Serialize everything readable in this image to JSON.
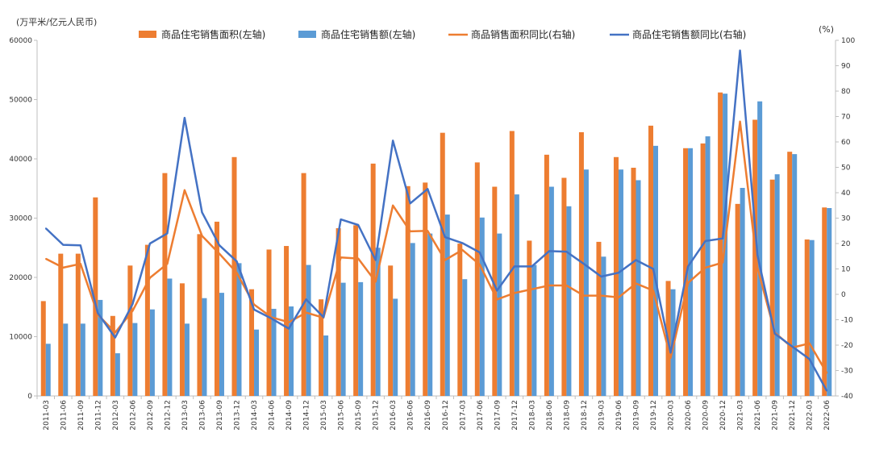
{
  "chart_data": {
    "type": "bar",
    "left_unit": "(万平米/亿元人民币)",
    "right_unit": "(%)",
    "categories": [
      "2011-03",
      "2011-06",
      "2011-09",
      "2011-12",
      "2012-03",
      "2012-06",
      "2012-09",
      "2012-12",
      "2013-03",
      "2013-06",
      "2013-09",
      "2013-12",
      "2014-03",
      "2014-06",
      "2014-09",
      "2014-12",
      "2015-03",
      "2015-06",
      "2015-09",
      "2015-12",
      "2016-03",
      "2016-06",
      "2016-09",
      "2016-12",
      "2017-03",
      "2017-06",
      "2017-09",
      "2017-12",
      "2018-03",
      "2018-06",
      "2018-09",
      "2018-12",
      "2019-03",
      "2019-06",
      "2019-09",
      "2019-12",
      "2020-03",
      "2020-06",
      "2020-09",
      "2020-12",
      "2021-03",
      "2021-06",
      "2021-09",
      "2021-12",
      "2022-03",
      "2022-06"
    ],
    "y_left": {
      "min": 0,
      "max": 60000,
      "ticks": [
        0,
        10000,
        20000,
        30000,
        40000,
        50000,
        60000
      ]
    },
    "y_right": {
      "min": -40,
      "max": 100,
      "ticks": [
        -40,
        -30,
        -20,
        -10,
        0,
        10,
        20,
        30,
        40,
        50,
        60,
        70,
        80,
        90,
        100
      ]
    },
    "legend": [
      {
        "label": "商品住宅销售面积(左轴)",
        "kind": "bar",
        "color": "#ED7D31"
      },
      {
        "label": "商品住宅销售额(左轴)",
        "kind": "bar",
        "color": "#5B9BD5"
      },
      {
        "label": "商品销售面积同比(右轴)",
        "kind": "line",
        "color": "#ED7D31"
      },
      {
        "label": "商品住宅销售额同比(右轴)",
        "kind": "line",
        "color": "#4472C4"
      }
    ],
    "series": [
      {
        "name": "商品住宅销售面积(左轴)",
        "axis": "left",
        "type": "bar",
        "color": "#ED7D31",
        "values": [
          16000,
          24000,
          24000,
          33500,
          13500,
          22000,
          25500,
          37600,
          19000,
          27300,
          29400,
          40300,
          18000,
          24700,
          25300,
          37600,
          16300,
          28300,
          28800,
          39200,
          22000,
          35400,
          36000,
          44400,
          25700,
          39400,
          35300,
          44700,
          26200,
          40700,
          36800,
          44500,
          26000,
          40300,
          38500,
          45600,
          19400,
          41800,
          42600,
          51200,
          32400,
          46600,
          36500,
          41200,
          26400,
          31800
        ]
      },
      {
        "name": "商品住宅销售额(左轴)",
        "axis": "left",
        "type": "bar",
        "color": "#5B9BD5",
        "values": [
          8800,
          12200,
          12200,
          16200,
          7200,
          12300,
          14600,
          19800,
          12200,
          16500,
          17400,
          22400,
          11200,
          14700,
          15100,
          22100,
          10200,
          19100,
          19200,
          25000,
          16400,
          25800,
          27400,
          30600,
          19700,
          30100,
          27400,
          34000,
          22100,
          35300,
          32000,
          38200,
          23500,
          38200,
          36400,
          42200,
          18000,
          41800,
          43800,
          51000,
          35100,
          49700,
          37400,
          40800,
          26300,
          31700
        ]
      },
      {
        "name": "商品销售面积同比(右轴)",
        "axis": "right",
        "type": "line",
        "color": "#ED7D31",
        "values": [
          14,
          10.5,
          12,
          -8,
          -15,
          -6.5,
          6.5,
          12,
          41,
          23,
          16,
          8.5,
          -4,
          -9,
          -11,
          -7.2,
          -9.2,
          14.5,
          14.1,
          5,
          35,
          24.8,
          25,
          13.5,
          17.5,
          11.7,
          -2,
          0.5,
          2,
          3.5,
          3.5,
          -0.5,
          -0.5,
          -1.2,
          4.3,
          1.5,
          -25,
          4.5,
          10.5,
          12.5,
          68,
          10.5,
          -15,
          -21,
          -19.3,
          -31
        ]
      },
      {
        "name": "商品住宅销售额同比(右轴)",
        "axis": "right",
        "type": "line",
        "color": "#4472C4",
        "values": [
          26,
          19.5,
          19.3,
          -7.4,
          -17,
          -3.8,
          20,
          24,
          69.5,
          32.3,
          19.3,
          13,
          -6,
          -9.5,
          -13.5,
          -2,
          -9,
          29.5,
          27.3,
          13.5,
          60.5,
          35.8,
          41.5,
          22.5,
          20.2,
          16.5,
          1.5,
          11,
          11,
          17,
          16.8,
          12,
          7,
          8.5,
          13.5,
          10,
          -23,
          11,
          21,
          22,
          96,
          15.5,
          -15.5,
          -20.5,
          -25.5,
          -38
        ]
      }
    ]
  }
}
